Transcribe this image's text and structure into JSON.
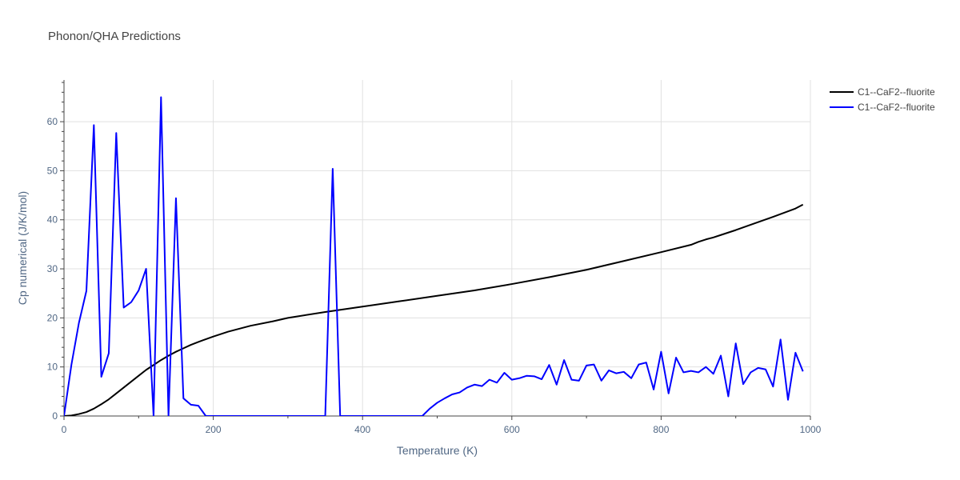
{
  "chart_data": {
    "type": "line",
    "title": "Phonon/QHA Predictions",
    "xlabel": "Temperature (K)",
    "ylabel": "Cp numerical (J/K/mol)",
    "xlim": [
      0,
      1000
    ],
    "ylim": [
      0,
      68.5
    ],
    "xticks": [
      0,
      200,
      400,
      600,
      800,
      1000
    ],
    "yticks": [
      0,
      10,
      20,
      30,
      40,
      50,
      60
    ],
    "grid": true,
    "legend_position": "top-right",
    "series": [
      {
        "name": "C1--CaF2--fluorite",
        "color": "#000000",
        "x": [
          0,
          10,
          20,
          30,
          40,
          50,
          60,
          70,
          80,
          90,
          100,
          110,
          120,
          130,
          140,
          150,
          160,
          170,
          180,
          200,
          220,
          250,
          280,
          300,
          350,
          400,
          450,
          500,
          550,
          600,
          650,
          700,
          750,
          800,
          840,
          850,
          860,
          870,
          880,
          900,
          920,
          950,
          980,
          990
        ],
        "y": [
          0,
          0.1,
          0.4,
          0.8,
          1.5,
          2.4,
          3.4,
          4.6,
          5.8,
          7.0,
          8.2,
          9.4,
          10.4,
          11.4,
          12.3,
          13.1,
          13.8,
          14.5,
          15.1,
          16.2,
          17.2,
          18.4,
          19.3,
          20.0,
          21.2,
          22.3,
          23.4,
          24.5,
          25.6,
          26.9,
          28.3,
          29.8,
          31.6,
          33.4,
          34.9,
          35.5,
          36.0,
          36.4,
          36.9,
          37.9,
          39.0,
          40.6,
          42.3,
          43.1
        ]
      },
      {
        "name": "C1--CaF2--fluorite",
        "color": "#0000ff",
        "x": [
          0,
          10,
          20,
          30,
          40,
          50,
          60,
          70,
          80,
          90,
          100,
          110,
          120,
          130,
          140,
          150,
          160,
          170,
          180,
          190,
          350,
          360,
          370,
          480,
          490,
          500,
          510,
          520,
          530,
          540,
          550,
          560,
          570,
          580,
          590,
          600,
          610,
          620,
          630,
          640,
          650,
          660,
          670,
          680,
          690,
          700,
          710,
          720,
          730,
          740,
          750,
          760,
          770,
          780,
          790,
          800,
          810,
          820,
          830,
          840,
          850,
          860,
          870,
          880,
          890,
          900,
          910,
          920,
          930,
          940,
          950,
          960,
          970,
          980,
          990
        ],
        "y": [
          0,
          10.5,
          19.0,
          25.5,
          59.3,
          8.0,
          12.8,
          57.7,
          22.1,
          23.2,
          25.6,
          30.0,
          0,
          65.0,
          0,
          44.4,
          3.6,
          2.3,
          2.1,
          0,
          0,
          50.4,
          0,
          0,
          1.5,
          2.7,
          3.6,
          4.4,
          4.8,
          5.8,
          6.4,
          6.1,
          7.4,
          6.8,
          8.8,
          7.4,
          7.7,
          8.2,
          8.1,
          7.5,
          10.4,
          6.4,
          11.4,
          7.4,
          7.2,
          10.3,
          10.5,
          7.2,
          9.3,
          8.7,
          9.0,
          7.7,
          10.5,
          10.9,
          5.4,
          13.1,
          4.6,
          11.9,
          8.9,
          9.2,
          8.9,
          10.0,
          8.6,
          12.3,
          4.0,
          14.8,
          6.5,
          8.9,
          9.8,
          9.5,
          6.0,
          15.6,
          3.3,
          12.9,
          9.1
        ]
      }
    ]
  }
}
